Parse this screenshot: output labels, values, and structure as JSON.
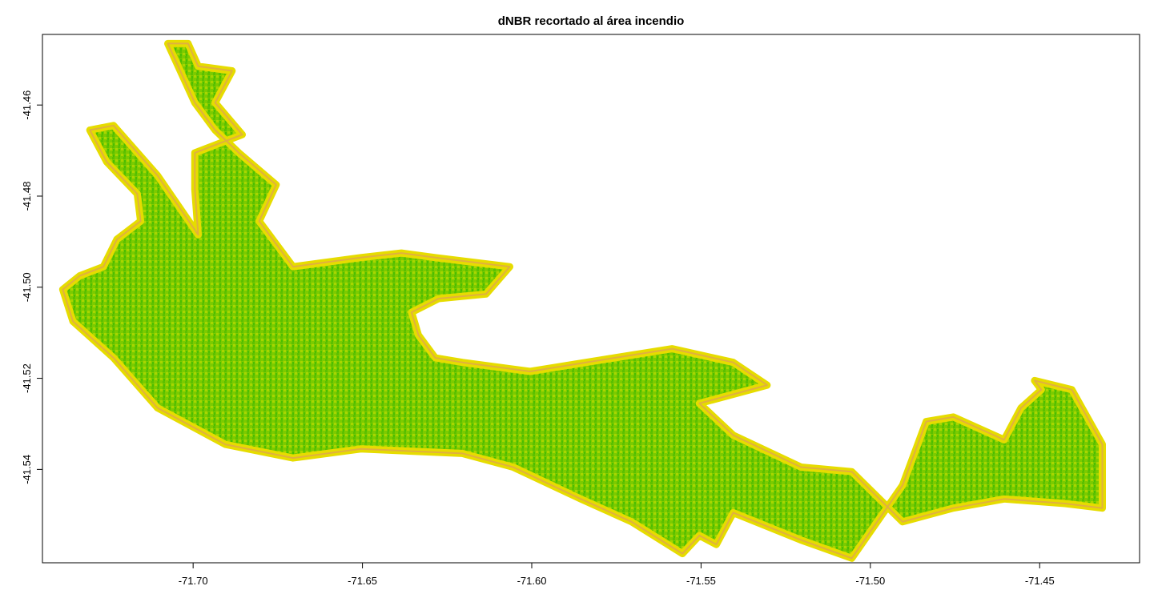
{
  "chart_data": {
    "type": "heatmap",
    "title": "dNBR recortado al área incendio",
    "xlabel": "",
    "ylabel": "",
    "xlim": [
      -71.7445,
      -71.4205
    ],
    "ylim": [
      -41.5605,
      -41.4445
    ],
    "x_ticks": [
      -71.7,
      -71.65,
      -71.6,
      -71.55,
      -71.5,
      -71.45
    ],
    "x_tick_labels": [
      "-71.70",
      "-71.65",
      "-71.60",
      "-71.55",
      "-71.50",
      "-71.45"
    ],
    "y_ticks": [
      -41.46,
      -41.48,
      -41.5,
      -41.52,
      -41.54
    ],
    "y_tick_labels": [
      "-41.46",
      "-41.48",
      "-41.50",
      "-41.52",
      "-41.54"
    ],
    "grid": false,
    "legend": "none",
    "colors": {
      "high": "#4bbf00",
      "mid": "#9ed400",
      "low": "#e6dc00",
      "edge": "#e0b040"
    },
    "burned_area_outline": [
      [
        -71.7385,
        -41.5005
      ],
      [
        -71.7335,
        -41.4975
      ],
      [
        -71.7265,
        -41.4955
      ],
      [
        -71.7225,
        -41.4895
      ],
      [
        -71.7155,
        -41.4855
      ],
      [
        -71.7165,
        -41.4795
      ],
      [
        -71.7255,
        -41.4725
      ],
      [
        -71.7305,
        -41.4655
      ],
      [
        -71.7235,
        -41.4645
      ],
      [
        -71.7105,
        -41.4755
      ],
      [
        -71.6985,
        -41.4885
      ],
      [
        -71.6995,
        -41.4785
      ],
      [
        -71.6995,
        -41.4705
      ],
      [
        -71.6855,
        -41.4665
      ],
      [
        -71.6935,
        -41.4595
      ],
      [
        -71.6885,
        -41.4525
      ],
      [
        -71.6985,
        -41.4515
      ],
      [
        -71.7015,
        -41.4465
      ],
      [
        -71.7075,
        -41.4465
      ],
      [
        -71.6995,
        -41.4595
      ],
      [
        -71.6935,
        -41.4655
      ],
      [
        -71.6865,
        -41.4705
      ],
      [
        -71.6755,
        -41.4775
      ],
      [
        -71.6805,
        -41.4855
      ],
      [
        -71.6705,
        -41.4955
      ],
      [
        -71.6505,
        -41.4935
      ],
      [
        -71.6385,
        -41.4925
      ],
      [
        -71.6285,
        -41.4935
      ],
      [
        -71.6065,
        -41.4955
      ],
      [
        -71.6135,
        -41.5015
      ],
      [
        -71.6275,
        -41.5025
      ],
      [
        -71.6355,
        -41.5055
      ],
      [
        -71.6335,
        -41.5105
      ],
      [
        -71.6285,
        -41.5155
      ],
      [
        -71.6205,
        -41.5165
      ],
      [
        -71.6005,
        -41.5185
      ],
      [
        -71.5755,
        -41.5155
      ],
      [
        -71.5585,
        -41.5135
      ],
      [
        -71.5405,
        -41.5165
      ],
      [
        -71.5305,
        -41.5215
      ],
      [
        -71.5505,
        -41.5255
      ],
      [
        -71.5405,
        -41.5325
      ],
      [
        -71.5205,
        -41.5395
      ],
      [
        -71.5055,
        -41.5405
      ],
      [
        -71.4905,
        -41.5515
      ],
      [
        -71.4755,
        -41.5485
      ],
      [
        -71.4605,
        -41.5465
      ],
      [
        -71.4425,
        -41.5475
      ],
      [
        -71.4315,
        -41.5485
      ],
      [
        -71.4315,
        -41.5345
      ],
      [
        -71.4405,
        -41.5225
      ],
      [
        -71.4515,
        -41.5205
      ],
      [
        -71.4495,
        -41.5225
      ],
      [
        -71.4555,
        -41.5265
      ],
      [
        -71.4605,
        -41.5335
      ],
      [
        -71.4755,
        -41.5285
      ],
      [
        -71.4835,
        -41.5295
      ],
      [
        -71.4905,
        -41.5435
      ],
      [
        -71.5055,
        -41.5595
      ],
      [
        -71.5205,
        -41.5555
      ],
      [
        -71.5405,
        -41.5495
      ],
      [
        -71.5455,
        -41.5565
      ],
      [
        -71.5505,
        -41.5545
      ],
      [
        -71.5555,
        -41.5585
      ],
      [
        -71.5705,
        -41.5515
      ],
      [
        -71.5855,
        -41.5465
      ],
      [
        -71.6055,
        -41.5395
      ],
      [
        -71.6205,
        -41.5365
      ],
      [
        -71.6505,
        -41.5355
      ],
      [
        -71.6705,
        -41.5375
      ],
      [
        -71.6905,
        -41.5345
      ],
      [
        -71.7105,
        -41.5265
      ],
      [
        -71.7235,
        -41.5155
      ],
      [
        -71.7355,
        -41.5075
      ]
    ]
  }
}
